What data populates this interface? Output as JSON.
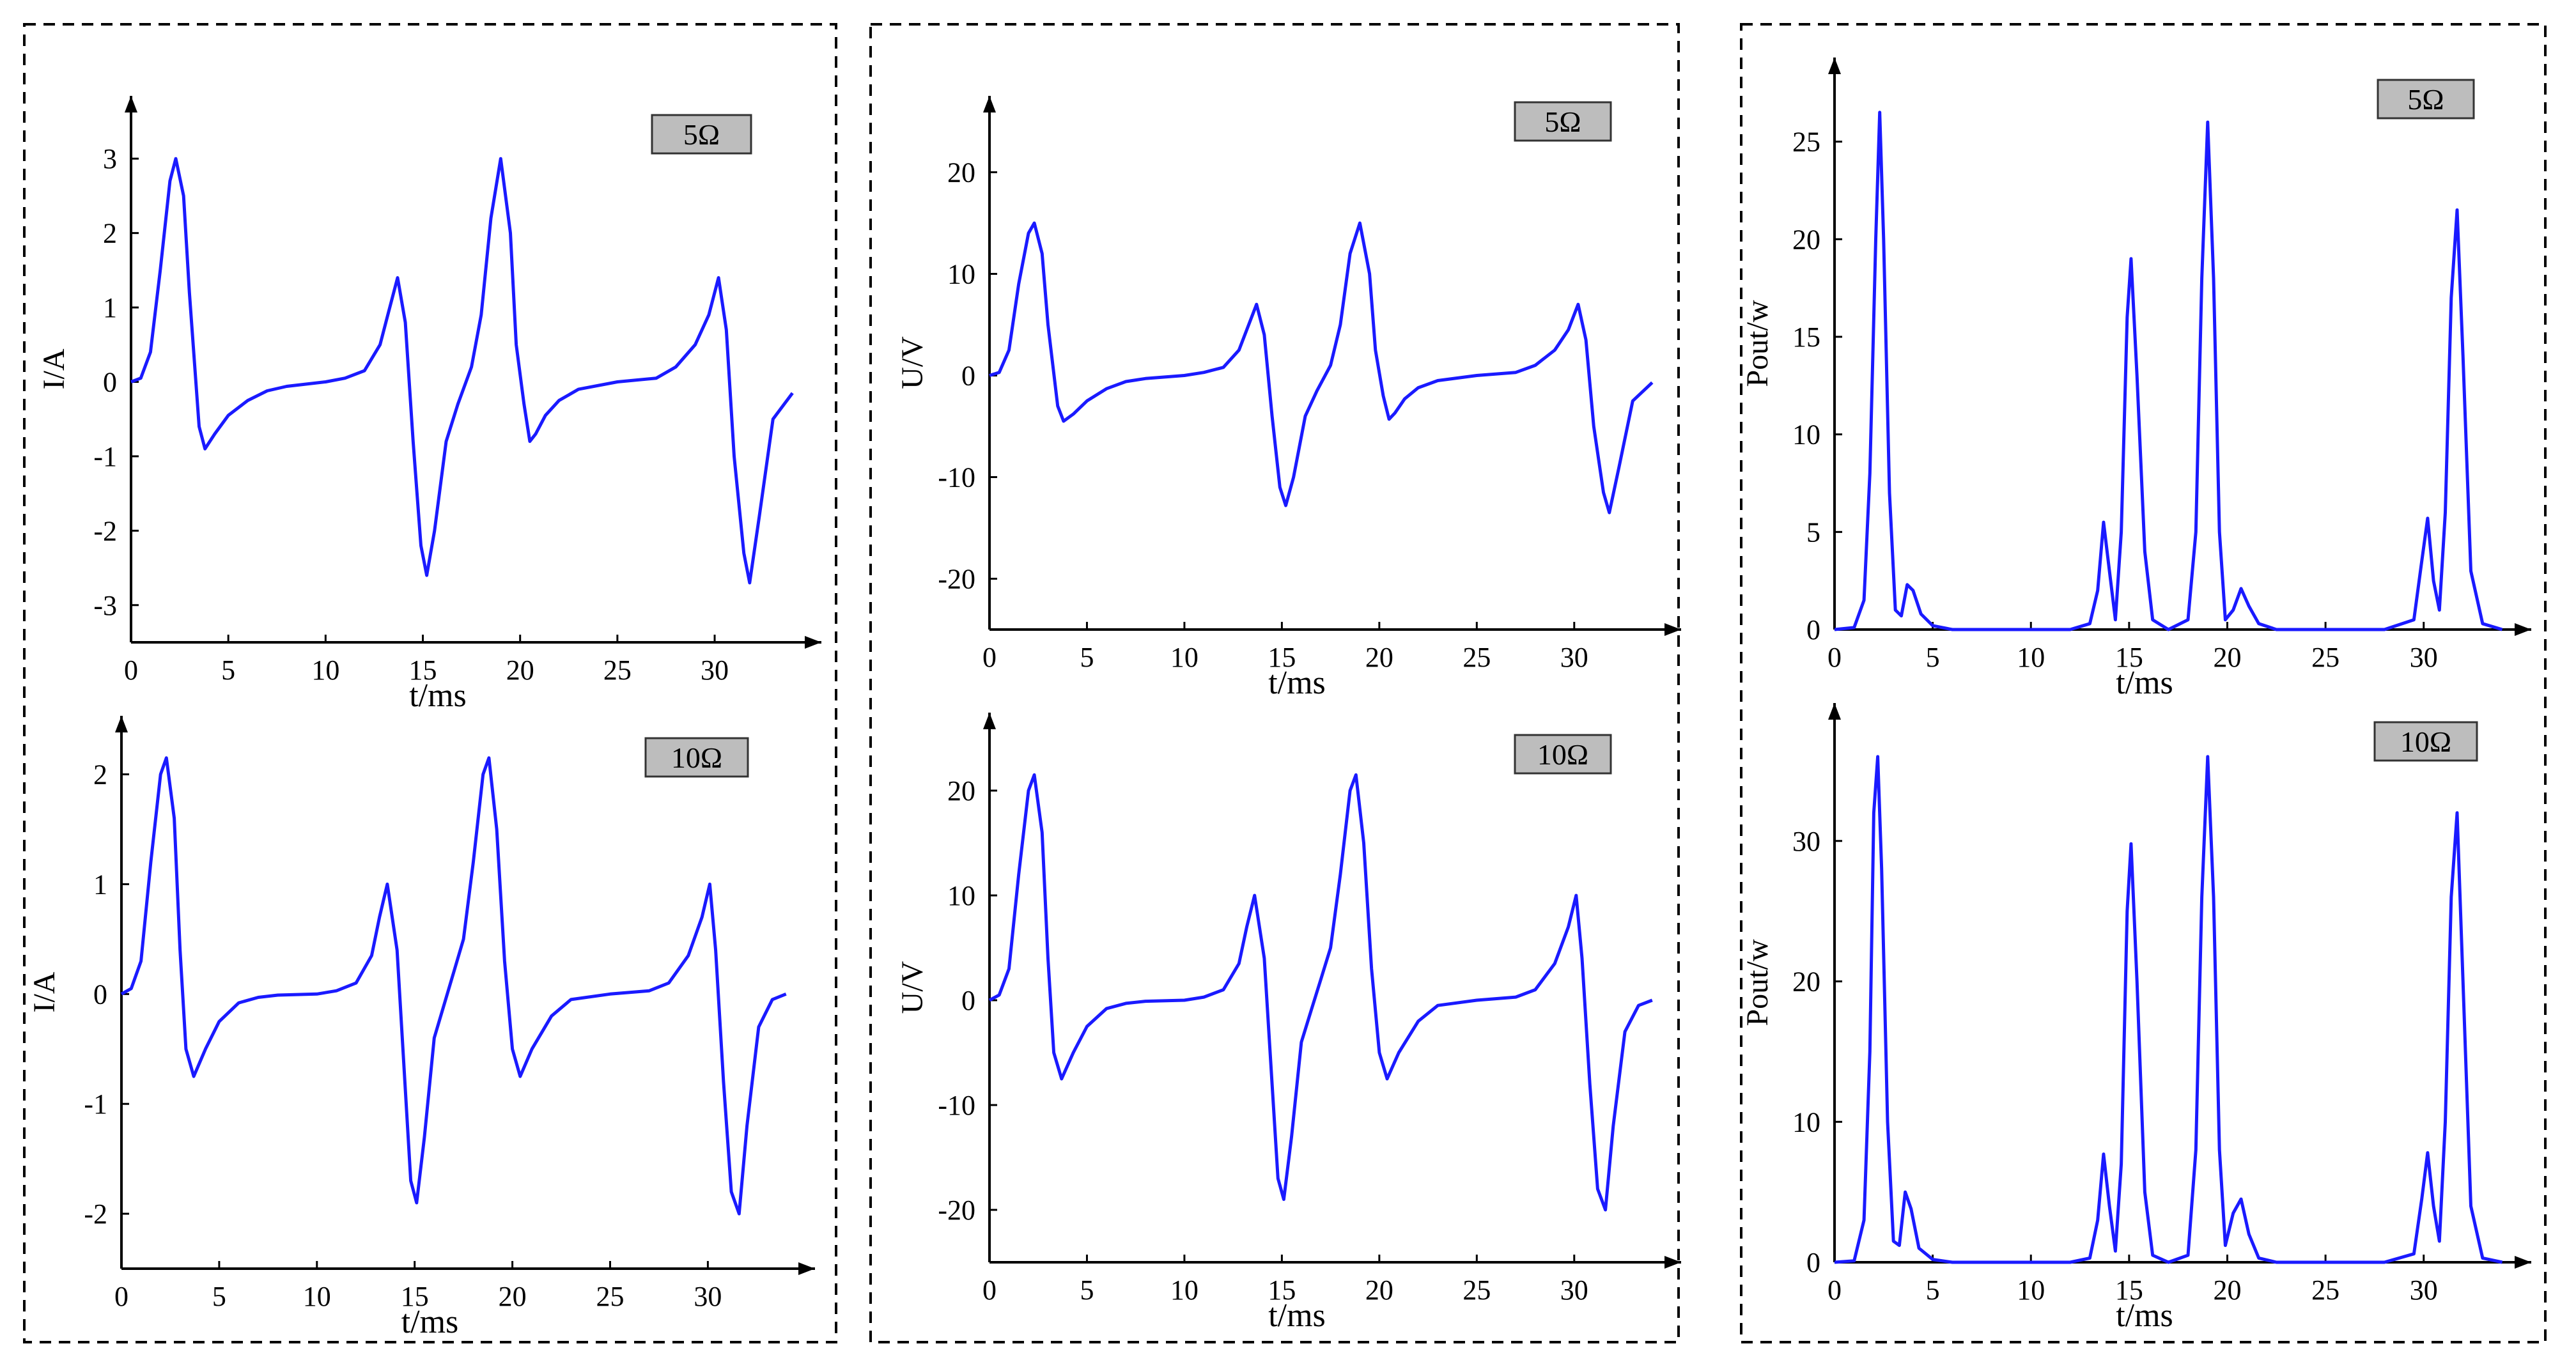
{
  "style": {
    "line_color": "#1a1aff"
  },
  "chart_data": [
    {
      "id": "I-5",
      "type": "line",
      "badge": "5Ω",
      "xlabel": "t/ms",
      "ylabel": "I/A",
      "xlim": [
        0,
        34
      ],
      "ylim": [
        -3.5,
        3.5
      ],
      "xticks": [
        0,
        5,
        10,
        15,
        20,
        25,
        30
      ],
      "yticks": [
        -3,
        -2,
        -1,
        0,
        1,
        2,
        3
      ],
      "series": [
        {
          "x": [
            0,
            0.5,
            1,
            1.5,
            2,
            2.3,
            2.7,
            3,
            3.5,
            3.8,
            4.3,
            5,
            6,
            7,
            8,
            10,
            11,
            12,
            12.8,
            13.2,
            13.7,
            14.1,
            14.5,
            14.9,
            15.2,
            15.6,
            16.2,
            16.8,
            17.5,
            18,
            18.5,
            19,
            19.5,
            19.8,
            20.2,
            20.5,
            20.8,
            21.3,
            22,
            23,
            25,
            27,
            28,
            29,
            29.7,
            30.2,
            30.6,
            31,
            31.5,
            31.8,
            32.3,
            33,
            34
          ],
          "y": [
            0,
            0.05,
            0.4,
            1.5,
            2.7,
            3.0,
            2.5,
            1.2,
            -0.6,
            -0.9,
            -0.7,
            -0.45,
            -0.25,
            -0.12,
            -0.06,
            0,
            0.05,
            0.15,
            0.5,
            0.9,
            1.4,
            0.8,
            -0.8,
            -2.2,
            -2.6,
            -2.0,
            -0.8,
            -0.3,
            0.2,
            0.9,
            2.2,
            3.0,
            2.0,
            0.5,
            -0.3,
            -0.8,
            -0.7,
            -0.45,
            -0.25,
            -0.1,
            0,
            0.05,
            0.2,
            0.5,
            0.9,
            1.4,
            0.7,
            -1.0,
            -2.3,
            -2.7,
            -1.8,
            -0.5,
            -0.15
          ]
        }
      ]
    },
    {
      "id": "U-5",
      "type": "line",
      "badge": "5Ω",
      "xlabel": "t/ms",
      "ylabel": "U/V",
      "xlim": [
        0,
        34
      ],
      "ylim": [
        -25,
        25
      ],
      "xticks": [
        0,
        5,
        10,
        15,
        20,
        25,
        30
      ],
      "yticks": [
        -20,
        -10,
        0,
        10,
        20
      ],
      "series": [
        {
          "x": [
            0,
            0.5,
            1,
            1.5,
            2,
            2.3,
            2.7,
            3,
            3.5,
            3.8,
            4.3,
            5,
            6,
            7,
            8,
            10,
            11,
            12,
            12.8,
            13.2,
            13.7,
            14.1,
            14.5,
            14.9,
            15.2,
            15.6,
            16.2,
            16.8,
            17.5,
            18,
            18.5,
            19,
            19.5,
            19.8,
            20.2,
            20.5,
            20.8,
            21.3,
            22,
            23,
            25,
            27,
            28,
            29,
            29.7,
            30.2,
            30.6,
            31,
            31.5,
            31.8,
            32.3,
            33,
            34
          ],
          "y": [
            0,
            0.3,
            2.5,
            9,
            14,
            15,
            12,
            5,
            -3,
            -4.5,
            -3.8,
            -2.5,
            -1.3,
            -0.6,
            -0.3,
            0,
            0.3,
            0.8,
            2.5,
            4.5,
            7,
            4,
            -4,
            -11,
            -12.8,
            -10,
            -4,
            -1.5,
            1,
            5,
            12,
            15,
            10,
            2.5,
            -2,
            -4.3,
            -3.7,
            -2.3,
            -1.2,
            -0.5,
            0,
            0.3,
            1,
            2.5,
            4.5,
            7,
            3.5,
            -5,
            -11.5,
            -13.5,
            -9,
            -2.5,
            -0.7
          ]
        }
      ]
    },
    {
      "id": "P-5",
      "type": "line",
      "badge": "5Ω",
      "xlabel": "t/ms",
      "ylabel": "Pout/w",
      "xlim": [
        0,
        34
      ],
      "ylim": [
        0,
        28
      ],
      "xticks": [
        0,
        5,
        10,
        15,
        20,
        25,
        30
      ],
      "yticks": [
        0,
        5,
        10,
        15,
        20,
        25
      ],
      "series": [
        {
          "x": [
            0,
            1,
            1.5,
            1.8,
            2.1,
            2.3,
            2.5,
            2.8,
            3.1,
            3.4,
            3.7,
            4.0,
            4.4,
            5,
            6,
            8,
            10,
            12,
            13.0,
            13.4,
            13.7,
            14.0,
            14.3,
            14.6,
            14.9,
            15.1,
            15.4,
            15.8,
            16.2,
            17,
            18,
            18.4,
            18.7,
            19,
            19.3,
            19.6,
            19.9,
            20.3,
            20.7,
            21.1,
            21.6,
            22.5,
            25,
            28,
            29.5,
            29.9,
            30.2,
            30.5,
            30.8,
            31.1,
            31.4,
            31.7,
            32.0,
            32.4,
            33,
            34
          ],
          "y": [
            0,
            0.1,
            1.5,
            8,
            20,
            26.5,
            20,
            7,
            1,
            0.7,
            2.3,
            2.0,
            0.8,
            0.2,
            0,
            0,
            0,
            0,
            0.3,
            2,
            5.5,
            3,
            0.5,
            5,
            16,
            19,
            13,
            4,
            0.5,
            0,
            0.5,
            5,
            18,
            26,
            18,
            5,
            0.5,
            1,
            2.1,
            1.2,
            0.3,
            0,
            0,
            0,
            0.5,
            3.5,
            5.7,
            2.5,
            1,
            6,
            17,
            21.5,
            14,
            3,
            0.3,
            0
          ]
        }
      ]
    },
    {
      "id": "I-10",
      "type": "line",
      "badge": "10Ω",
      "xlabel": "t/ms",
      "ylabel": "I/A",
      "xlim": [
        0,
        34
      ],
      "ylim": [
        -2.5,
        2.3
      ],
      "xticks": [
        0,
        5,
        10,
        15,
        20,
        25,
        30
      ],
      "yticks": [
        -2,
        -1,
        0,
        1,
        2
      ],
      "series": [
        {
          "x": [
            0,
            0.5,
            1,
            1.5,
            2,
            2.3,
            2.7,
            3,
            3.3,
            3.7,
            4.3,
            5,
            6,
            7,
            8,
            10,
            11,
            12,
            12.8,
            13.2,
            13.6,
            14.1,
            14.5,
            14.8,
            15.1,
            15.5,
            16,
            16.5,
            17,
            17.5,
            18,
            18.5,
            18.8,
            19.2,
            19.6,
            20,
            20.4,
            21,
            22,
            23,
            25,
            27,
            28,
            29,
            29.7,
            30.1,
            30.4,
            30.8,
            31.2,
            31.6,
            32,
            32.6,
            33.3,
            34
          ],
          "y": [
            0,
            0.05,
            0.3,
            1.2,
            2.0,
            2.15,
            1.6,
            0.4,
            -0.5,
            -0.75,
            -0.5,
            -0.25,
            -0.08,
            -0.03,
            -0.01,
            0,
            0.03,
            0.1,
            0.35,
            0.7,
            1.0,
            0.4,
            -0.8,
            -1.7,
            -1.9,
            -1.3,
            -0.4,
            -0.1,
            0.2,
            0.5,
            1.2,
            2.0,
            2.15,
            1.5,
            0.3,
            -0.5,
            -0.75,
            -0.5,
            -0.2,
            -0.05,
            0,
            0.03,
            0.1,
            0.35,
            0.7,
            1.0,
            0.4,
            -0.8,
            -1.8,
            -2.0,
            -1.2,
            -0.3,
            -0.05,
            0
          ]
        }
      ]
    },
    {
      "id": "U-10",
      "type": "line",
      "badge": "10Ω",
      "xlabel": "t/ms",
      "ylabel": "U/V",
      "xlim": [
        0,
        34
      ],
      "ylim": [
        -25,
        25
      ],
      "xticks": [
        0,
        5,
        10,
        15,
        20,
        25,
        30
      ],
      "yticks": [
        -20,
        -10,
        0,
        10,
        20
      ],
      "series": [
        {
          "x": [
            0,
            0.5,
            1,
            1.5,
            2,
            2.3,
            2.7,
            3,
            3.3,
            3.7,
            4.3,
            5,
            6,
            7,
            8,
            10,
            11,
            12,
            12.8,
            13.2,
            13.6,
            14.1,
            14.5,
            14.8,
            15.1,
            15.5,
            16,
            16.5,
            17,
            17.5,
            18,
            18.5,
            18.8,
            19.2,
            19.6,
            20,
            20.4,
            21,
            22,
            23,
            25,
            27,
            28,
            29,
            29.7,
            30.1,
            30.4,
            30.8,
            31.2,
            31.6,
            32,
            32.6,
            33.3,
            34
          ],
          "y": [
            0,
            0.5,
            3,
            12,
            20,
            21.5,
            16,
            4,
            -5,
            -7.5,
            -5,
            -2.5,
            -0.8,
            -0.3,
            -0.1,
            0,
            0.3,
            1,
            3.5,
            7,
            10,
            4,
            -8,
            -17,
            -19,
            -13,
            -4,
            -1,
            2,
            5,
            12,
            20,
            21.5,
            15,
            3,
            -5,
            -7.5,
            -5,
            -2,
            -0.5,
            0,
            0.3,
            1,
            3.5,
            7,
            10,
            4,
            -8,
            -18,
            -20,
            -12,
            -3,
            -0.5,
            0
          ]
        }
      ]
    },
    {
      "id": "P-10",
      "type": "line",
      "badge": "10Ω",
      "xlabel": "t/ms",
      "ylabel": "Pout/w",
      "xlim": [
        0,
        34
      ],
      "ylim": [
        0,
        38
      ],
      "xticks": [
        0,
        5,
        10,
        15,
        20,
        25,
        30
      ],
      "yticks": [
        0,
        10,
        20,
        30
      ],
      "series": [
        {
          "x": [
            0,
            1,
            1.5,
            1.8,
            2.0,
            2.2,
            2.4,
            2.7,
            3.0,
            3.3,
            3.6,
            3.9,
            4.3,
            5,
            6,
            8,
            10,
            12,
            13.0,
            13.4,
            13.7,
            14.0,
            14.3,
            14.6,
            14.9,
            15.1,
            15.4,
            15.8,
            16.2,
            17,
            18,
            18.4,
            18.7,
            19,
            19.3,
            19.6,
            19.9,
            20.3,
            20.7,
            21.1,
            21.6,
            22.5,
            25,
            28,
            29.5,
            29.9,
            30.2,
            30.5,
            30.8,
            31.1,
            31.4,
            31.7,
            32.0,
            32.4,
            33,
            34
          ],
          "y": [
            0,
            0.1,
            3,
            15,
            32,
            36,
            28,
            10,
            1.5,
            1.2,
            5,
            3.8,
            1,
            0.2,
            0,
            0,
            0,
            0,
            0.3,
            3,
            7.7,
            4,
            0.8,
            7,
            25,
            29.8,
            20,
            5,
            0.5,
            0,
            0.5,
            8,
            26,
            36,
            26,
            8,
            1.2,
            3.5,
            4.5,
            2,
            0.3,
            0,
            0,
            0,
            0.6,
            4.5,
            7.8,
            4,
            1.5,
            10,
            26,
            32,
            20,
            4,
            0.3,
            0
          ]
        }
      ]
    }
  ]
}
